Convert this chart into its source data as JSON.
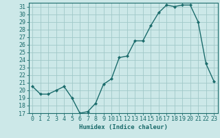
{
  "x": [
    0,
    1,
    2,
    3,
    4,
    5,
    6,
    7,
    8,
    9,
    10,
    11,
    12,
    13,
    14,
    15,
    16,
    17,
    18,
    19,
    20,
    21,
    22,
    23
  ],
  "y": [
    20.5,
    19.5,
    19.5,
    20.0,
    20.5,
    19.0,
    17.0,
    17.2,
    18.3,
    20.8,
    21.5,
    24.3,
    24.5,
    26.5,
    26.5,
    28.5,
    30.2,
    31.2,
    31.0,
    31.2,
    31.2,
    29.0,
    23.5,
    21.2
  ],
  "line_color": "#1a6b6b",
  "marker": "D",
  "marker_size": 2.2,
  "bg_color": "#cce8e8",
  "grid_color": "#a0c8c8",
  "xlabel": "Humidex (Indice chaleur)",
  "xlim": [
    -0.5,
    23.5
  ],
  "ylim": [
    17,
    31.5
  ],
  "yticks": [
    17,
    18,
    19,
    20,
    21,
    22,
    23,
    24,
    25,
    26,
    27,
    28,
    29,
    30,
    31
  ],
  "xticks": [
    0,
    1,
    2,
    3,
    4,
    5,
    6,
    7,
    8,
    9,
    10,
    11,
    12,
    13,
    14,
    15,
    16,
    17,
    18,
    19,
    20,
    21,
    22,
    23
  ],
  "label_fontsize": 6.5,
  "tick_fontsize": 6.0
}
